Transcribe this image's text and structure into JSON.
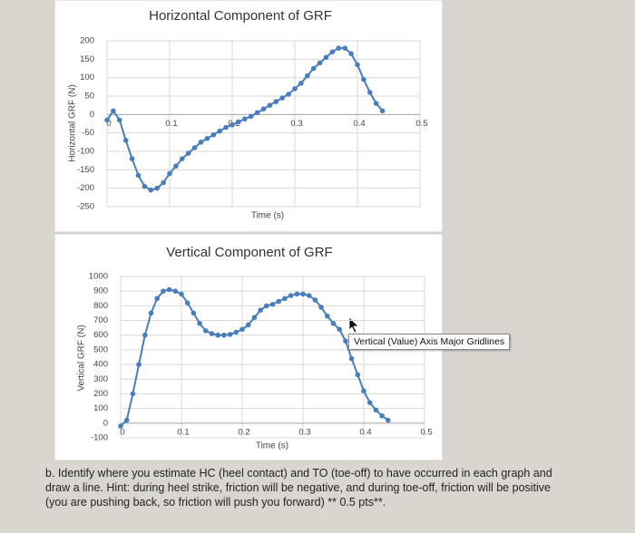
{
  "chart_data": [
    {
      "type": "line",
      "title": "Horizontal Component of GRF",
      "x_label": "Time (s)",
      "y_label": "Horizontal GRF (N)",
      "x": [
        0,
        0.01,
        0.02,
        0.03,
        0.04,
        0.05,
        0.06,
        0.07,
        0.08,
        0.09,
        0.1,
        0.11,
        0.12,
        0.13,
        0.14,
        0.15,
        0.16,
        0.17,
        0.18,
        0.19,
        0.2,
        0.21,
        0.22,
        0.23,
        0.24,
        0.25,
        0.26,
        0.27,
        0.28,
        0.29,
        0.3,
        0.31,
        0.32,
        0.33,
        0.34,
        0.35,
        0.36,
        0.37,
        0.38,
        0.39,
        0.4,
        0.41,
        0.42,
        0.43,
        0.44
      ],
      "series": [
        {
          "color": "#4a7ebb",
          "values": [
            -15,
            10,
            -15,
            -70,
            -120,
            -165,
            -195,
            -205,
            -200,
            -185,
            -160,
            -140,
            -120,
            -105,
            -90,
            -75,
            -65,
            -55,
            -45,
            -35,
            -28,
            -20,
            -12,
            -5,
            5,
            15,
            25,
            35,
            45,
            55,
            70,
            85,
            105,
            125,
            140,
            155,
            170,
            180,
            180,
            165,
            135,
            95,
            60,
            30,
            10
          ]
        }
      ],
      "xlim": [
        0,
        0.5
      ],
      "xticks": [
        0,
        0.1,
        0.2,
        0.3,
        0.4,
        0.5
      ],
      "ylim": [
        -250,
        200
      ],
      "yticks": [
        -250,
        -200,
        -150,
        -100,
        -50,
        0,
        50,
        100,
        150,
        200
      ],
      "grid": true
    },
    {
      "type": "line",
      "title": "Vertical Component of GRF",
      "x_label": "Time (s)",
      "y_label": "Vertical GRF (N)",
      "x": [
        0,
        0.01,
        0.02,
        0.03,
        0.04,
        0.05,
        0.06,
        0.07,
        0.08,
        0.09,
        0.1,
        0.11,
        0.12,
        0.13,
        0.14,
        0.15,
        0.16,
        0.17,
        0.18,
        0.19,
        0.2,
        0.21,
        0.22,
        0.23,
        0.24,
        0.25,
        0.26,
        0.27,
        0.28,
        0.29,
        0.3,
        0.31,
        0.32,
        0.33,
        0.34,
        0.35,
        0.36,
        0.37,
        0.38,
        0.39,
        0.4,
        0.41,
        0.42,
        0.43,
        0.44
      ],
      "series": [
        {
          "color": "#4a7ebb",
          "values": [
            -20,
            20,
            200,
            400,
            600,
            750,
            850,
            900,
            910,
            900,
            880,
            820,
            750,
            680,
            630,
            610,
            600,
            600,
            605,
            620,
            640,
            670,
            720,
            770,
            800,
            810,
            830,
            850,
            870,
            880,
            880,
            870,
            840,
            790,
            730,
            680,
            640,
            560,
            440,
            330,
            220,
            140,
            90,
            50,
            20
          ]
        }
      ],
      "xlim": [
        0,
        0.5
      ],
      "xticks": [
        0,
        0.1,
        0.2,
        0.3,
        0.4,
        0.5
      ],
      "ylim": [
        -100,
        1000
      ],
      "yticks": [
        -100,
        0,
        100,
        200,
        300,
        400,
        500,
        600,
        700,
        800,
        900,
        1000
      ],
      "grid": true
    }
  ],
  "tooltip": "Vertical (Value) Axis Major Gridlines",
  "document": {
    "paragraph": "b. Identify where you estimate HC (heel contact) and TO (toe-off) to have occurred in each graph and draw a line. Hint: during heel strike, friction will be negative, and during toe-off, friction will be positive (you are pushing back, so friction will push you forward) ** 0.5 pts**."
  }
}
